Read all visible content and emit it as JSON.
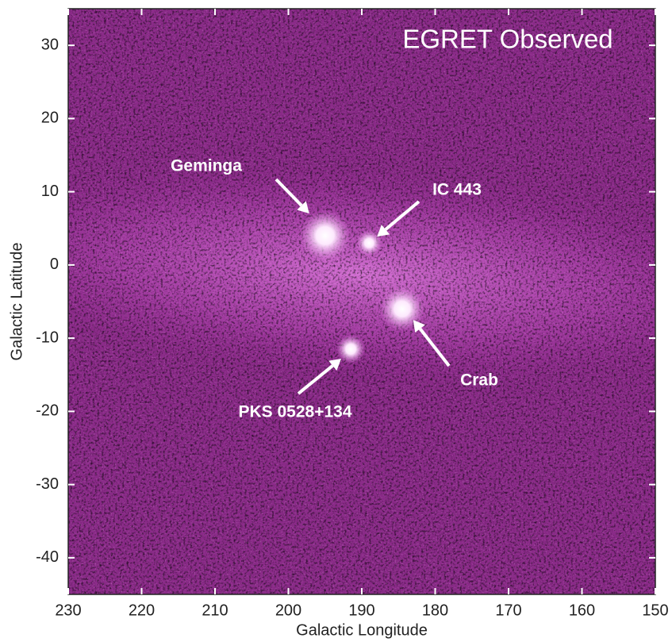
{
  "chart_data": {
    "type": "image",
    "title": "EGRET Observed",
    "xlabel": "Galactic Longitude",
    "ylabel": "Galactic Latitude",
    "xlim": [
      230,
      150
    ],
    "ylim": [
      -45,
      35
    ],
    "xticks": [
      230,
      220,
      210,
      200,
      190,
      180,
      170,
      160,
      150
    ],
    "yticks": [
      30,
      20,
      10,
      0,
      -10,
      -20,
      -30,
      -40
    ],
    "sources": [
      {
        "name": "Geminga",
        "l": 195,
        "b": 4
      },
      {
        "name": "IC 443",
        "l": 189,
        "b": 3
      },
      {
        "name": "Crab",
        "l": 184.5,
        "b": -6
      },
      {
        "name": "PKS 0528+134",
        "l": 191.5,
        "b": -11.5
      }
    ]
  }
}
